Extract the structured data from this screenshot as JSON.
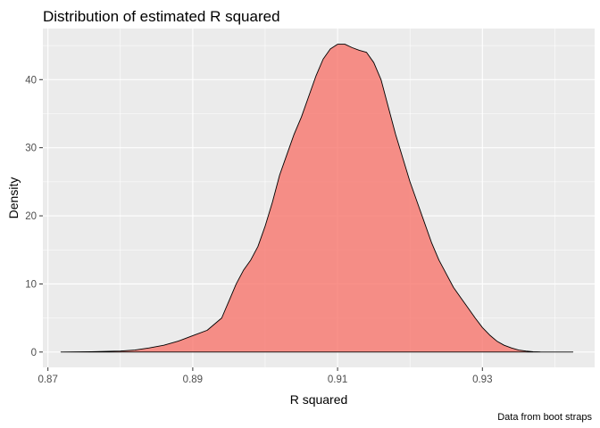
{
  "chart_data": {
    "type": "area",
    "title": "Distribution of estimated R squared",
    "xlabel": "R squared",
    "ylabel": "Density",
    "caption": "Data from boot straps",
    "xlim": [
      0.8693,
      0.9455
    ],
    "ylim": [
      -2.25,
      47.5
    ],
    "x_ticks": [
      0.87,
      0.89,
      0.91,
      0.93
    ],
    "x_tick_labels": [
      "0.87",
      "0.89",
      "0.91",
      "0.93"
    ],
    "y_ticks": [
      0,
      10,
      20,
      30,
      40
    ],
    "y_tick_labels": [
      "0",
      "10",
      "20",
      "30",
      "40"
    ],
    "grid": true,
    "fill_color": "#f8766d",
    "fill_opacity": 0.8,
    "panel_color": "#ebebeb",
    "series": [
      {
        "x": [
          0.8718,
          0.876,
          0.88,
          0.882,
          0.884,
          0.886,
          0.888,
          0.89,
          0.892,
          0.894,
          0.895,
          0.896,
          0.897,
          0.898,
          0.899,
          0.9,
          0.901,
          0.902,
          0.903,
          0.904,
          0.905,
          0.906,
          0.907,
          0.908,
          0.909,
          0.91,
          0.911,
          0.912,
          0.913,
          0.914,
          0.915,
          0.916,
          0.917,
          0.918,
          0.919,
          0.92,
          0.921,
          0.922,
          0.923,
          0.924,
          0.925,
          0.926,
          0.927,
          0.928,
          0.929,
          0.93,
          0.931,
          0.932,
          0.933,
          0.934,
          0.935,
          0.936,
          0.937,
          0.938,
          0.9425
        ],
        "y": [
          0,
          0.05,
          0.15,
          0.3,
          0.6,
          1.0,
          1.6,
          2.4,
          3.2,
          5.0,
          7.5,
          10.0,
          12.0,
          13.5,
          15.5,
          18.5,
          22.0,
          26.0,
          29.0,
          32.0,
          34.5,
          37.5,
          40.5,
          43.0,
          44.5,
          45.2,
          45.2,
          44.7,
          44.3,
          44.0,
          42.5,
          40.0,
          36.0,
          32.0,
          28.5,
          25.0,
          22.0,
          19.0,
          16.0,
          13.5,
          11.5,
          9.5,
          8.0,
          6.5,
          5.0,
          3.6,
          2.5,
          1.6,
          1.0,
          0.6,
          0.3,
          0.15,
          0.05,
          0.02,
          0
        ]
      }
    ]
  }
}
